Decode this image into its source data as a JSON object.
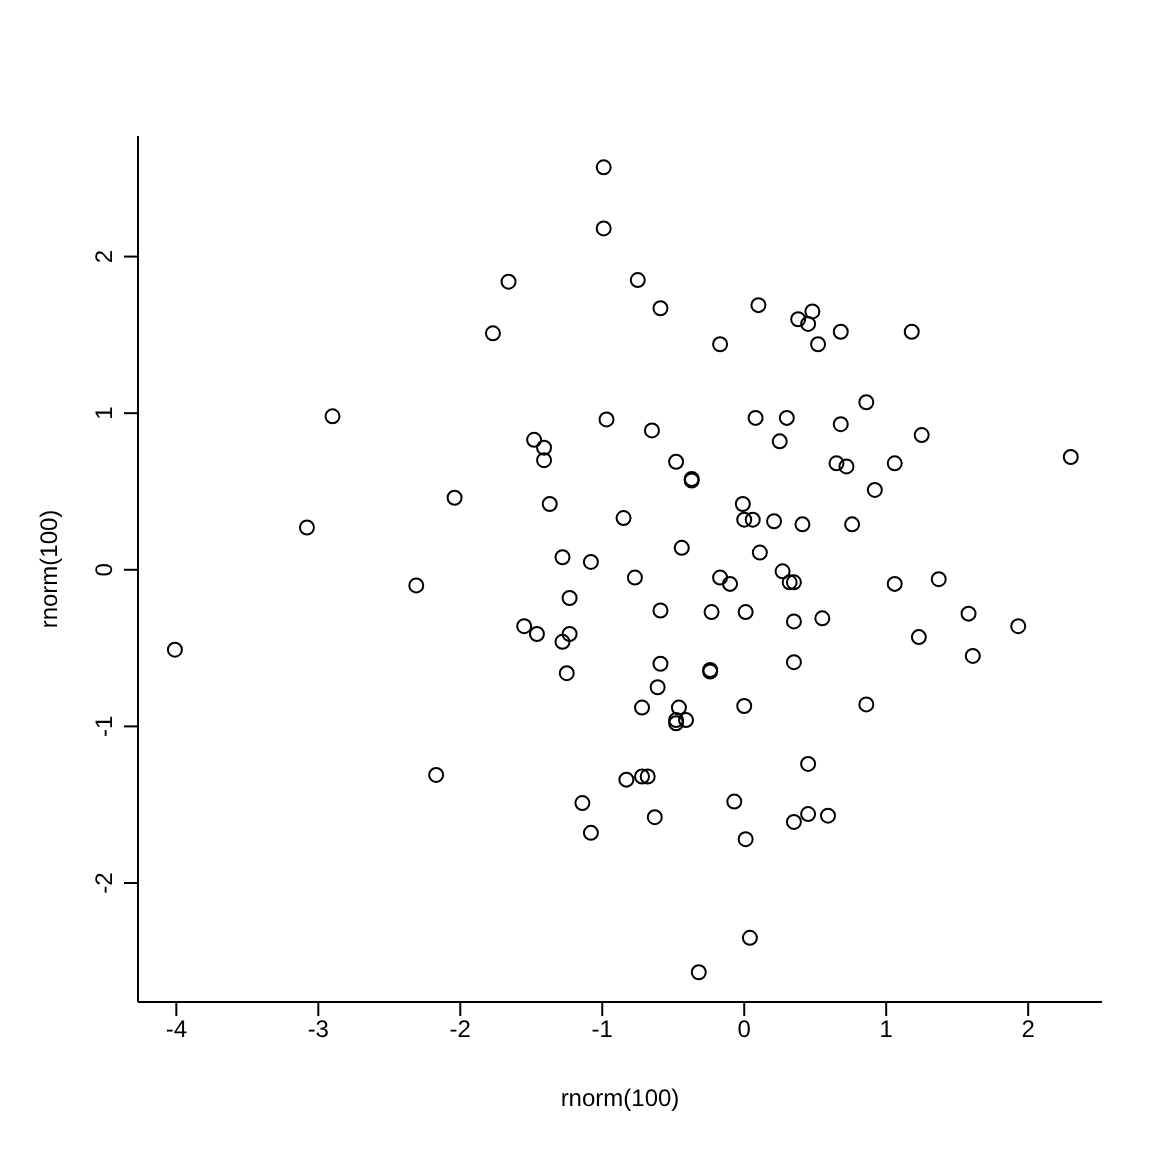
{
  "chart_data": {
    "type": "scatter",
    "xlabel": "rnorm(100)",
    "ylabel": "rnorm(100)",
    "marker": "circle",
    "color": "#000000",
    "xlim": [
      -4.27,
      2.52
    ],
    "ylim": [
      -2.76,
      2.77
    ],
    "xticks": [
      -4,
      -3,
      -2,
      -1,
      0,
      1,
      2
    ],
    "yticks": [
      -2,
      -1,
      0,
      1,
      2
    ],
    "x": [
      -0.99,
      -0.99,
      -1.66,
      -1.77,
      -2.9,
      -0.97,
      -1.48,
      -1.41,
      -1.41,
      -2.04,
      -1.37,
      -3.08,
      -1.28,
      -1.08,
      -0.85,
      -0.75,
      -0.59,
      0.1,
      0.38,
      0.48,
      0.45,
      0.68,
      1.18,
      -0.17,
      0.52,
      -0.65,
      0.08,
      0.3,
      0.68,
      0.86,
      0.25,
      1.25,
      -0.48,
      -0.37,
      -0.37,
      0.65,
      0.72,
      1.06,
      0.92,
      2.3,
      -0.01,
      0.0,
      0.06,
      0.21,
      0.41,
      0.76,
      -0.44,
      0.11,
      -0.77,
      -0.17,
      -0.1,
      0.27,
      0.32,
      0.35,
      1.06,
      1.37,
      -0.59,
      -0.23,
      0.01,
      0.35,
      0.55,
      1.58,
      1.93,
      1.23,
      1.61,
      -0.59,
      -0.24,
      -0.24,
      0.35,
      -0.61,
      -0.72,
      -0.46,
      -0.48,
      -0.41,
      -0.48,
      0.0,
      0.86,
      0.45,
      -0.83,
      -0.72,
      -0.68,
      -0.07,
      -0.63,
      0.35,
      0.45,
      0.59,
      0.01,
      0.04,
      -0.32,
      -2.31,
      -4.01,
      -1.23,
      -1.55,
      -1.46,
      -1.23,
      -1.28,
      -1.25,
      -2.17,
      -1.14,
      -1.08
    ],
    "values": [
      2.57,
      2.18,
      1.84,
      1.51,
      0.98,
      0.96,
      0.83,
      0.78,
      0.7,
      0.46,
      0.42,
      0.27,
      0.08,
      0.05,
      0.33,
      1.85,
      1.67,
      1.69,
      1.6,
      1.65,
      1.57,
      1.52,
      1.52,
      1.44,
      1.44,
      0.89,
      0.97,
      0.97,
      0.93,
      1.07,
      0.82,
      0.86,
      0.69,
      0.57,
      0.58,
      0.68,
      0.66,
      0.68,
      0.51,
      0.72,
      0.42,
      0.32,
      0.32,
      0.31,
      0.29,
      0.29,
      0.14,
      0.11,
      -0.05,
      -0.05,
      -0.09,
      -0.01,
      -0.08,
      -0.08,
      -0.09,
      -0.06,
      -0.26,
      -0.27,
      -0.27,
      -0.33,
      -0.31,
      -0.28,
      -0.36,
      -0.43,
      -0.55,
      -0.6,
      -0.64,
      -0.65,
      -0.59,
      -0.75,
      -0.88,
      -0.88,
      -0.96,
      -0.96,
      -0.98,
      -0.87,
      -0.86,
      -1.24,
      -1.34,
      -1.32,
      -1.32,
      -1.48,
      -1.58,
      -1.61,
      -1.56,
      -1.57,
      -1.72,
      -2.35,
      -2.57,
      -0.1,
      -0.51,
      -0.18,
      -0.36,
      -0.41,
      -0.41,
      -0.46,
      -0.66,
      -1.31,
      -1.49,
      -1.68
    ]
  }
}
